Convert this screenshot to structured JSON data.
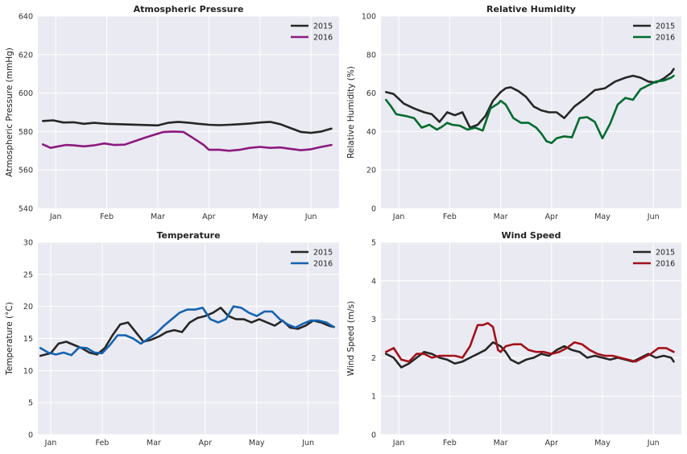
{
  "chart_data": [
    {
      "type": "line",
      "title": "Atmospheric Pressure",
      "xlabel": "",
      "ylabel": "Atmospheric Pressure (mmHg)",
      "ylim": [
        540,
        640
      ],
      "yticks": [
        540,
        560,
        580,
        600,
        620,
        640
      ],
      "xlim": [
        -0.35,
        5.55
      ],
      "xticks": [
        "Jan",
        "Feb",
        "Mar",
        "Apr",
        "May",
        "Jun"
      ],
      "grid": true,
      "legend": "top-right",
      "series": [
        {
          "name": "2015",
          "color": "#262626",
          "x": [
            -0.25,
            -0.05,
            0.15,
            0.35,
            0.55,
            0.75,
            1.0,
            1.25,
            1.5,
            1.75,
            2.0,
            2.2,
            2.4,
            2.6,
            2.8,
            3.0,
            3.2,
            3.4,
            3.6,
            3.8,
            4.0,
            4.2,
            4.4,
            4.6,
            4.8,
            5.0,
            5.2,
            5.4
          ],
          "y": [
            585.5,
            585.8,
            584.7,
            584.8,
            584.0,
            584.5,
            584.0,
            583.8,
            583.6,
            583.4,
            583.2,
            584.5,
            585.0,
            584.6,
            584.0,
            583.5,
            583.3,
            583.5,
            583.8,
            584.2,
            584.7,
            585.0,
            583.8,
            581.8,
            579.8,
            579.3,
            580.0,
            581.5
          ]
        },
        {
          "name": "2016",
          "color": "#8b1a7e",
          "x": [
            -0.25,
            -0.1,
            0.05,
            0.2,
            0.35,
            0.55,
            0.75,
            0.95,
            1.15,
            1.35,
            1.55,
            1.75,
            1.95,
            2.1,
            2.3,
            2.5,
            2.7,
            2.9,
            3.0,
            3.2,
            3.4,
            3.6,
            3.8,
            4.0,
            4.2,
            4.4,
            4.6,
            4.8,
            5.0,
            5.2,
            5.4
          ],
          "y": [
            573.3,
            571.5,
            572.3,
            573.0,
            572.8,
            572.3,
            572.8,
            573.8,
            573.0,
            573.2,
            575.0,
            576.8,
            578.5,
            579.7,
            580.0,
            579.8,
            576.5,
            573.0,
            570.5,
            570.5,
            570.0,
            570.5,
            571.5,
            572.0,
            571.5,
            571.7,
            571.0,
            570.3,
            570.8,
            572.0,
            573.0
          ]
        }
      ]
    },
    {
      "type": "line",
      "title": "Relative Humidity",
      "xlabel": "",
      "ylabel": "Relative Humidity (%)",
      "ylim": [
        0,
        100
      ],
      "yticks": [
        0,
        20,
        40,
        60,
        80,
        100
      ],
      "xlim": [
        -0.35,
        5.55
      ],
      "xticks": [
        "Jan",
        "Feb",
        "Mar",
        "Apr",
        "May",
        "Jun"
      ],
      "grid": true,
      "legend": "top-right",
      "series": [
        {
          "name": "2015",
          "color": "#262626",
          "x": [
            -0.25,
            -0.1,
            0.1,
            0.3,
            0.5,
            0.65,
            0.8,
            0.95,
            1.1,
            1.25,
            1.4,
            1.55,
            1.7,
            1.85,
            2.0,
            2.1,
            2.2,
            2.35,
            2.5,
            2.65,
            2.8,
            2.95,
            3.1,
            3.25,
            3.45,
            3.65,
            3.85,
            4.05,
            4.25,
            4.45,
            4.6,
            4.75,
            4.9,
            5.05,
            5.2,
            5.35,
            5.4
          ],
          "y": [
            60.5,
            59.5,
            54.5,
            52.0,
            50.0,
            49.0,
            45.0,
            50.0,
            48.5,
            50.0,
            42.0,
            43.5,
            48.0,
            56.0,
            60.5,
            62.5,
            63.0,
            61.0,
            58.0,
            53.0,
            51.0,
            50.0,
            50.0,
            47.0,
            53.0,
            57.0,
            61.5,
            62.5,
            66.0,
            68.0,
            69.0,
            68.0,
            66.0,
            65.5,
            67.5,
            70.5,
            72.5
          ]
        },
        {
          "name": "2016",
          "color": "#006b2e",
          "x": [
            -0.25,
            -0.15,
            -0.05,
            0.15,
            0.3,
            0.45,
            0.6,
            0.75,
            0.85,
            0.95,
            1.05,
            1.2,
            1.35,
            1.5,
            1.65,
            1.8,
            1.95,
            2.0,
            2.1,
            2.25,
            2.4,
            2.55,
            2.7,
            2.8,
            2.9,
            3.0,
            3.1,
            3.25,
            3.4,
            3.55,
            3.7,
            3.85,
            4.0,
            4.15,
            4.3,
            4.45,
            4.6,
            4.75,
            4.9,
            5.05,
            5.2,
            5.35,
            5.4
          ],
          "y": [
            56.5,
            53.0,
            49.0,
            48.0,
            47.0,
            42.0,
            43.5,
            41.0,
            42.5,
            44.5,
            43.5,
            43.0,
            41.0,
            42.0,
            40.5,
            52.0,
            54.5,
            56.0,
            54.0,
            47.0,
            44.5,
            44.5,
            42.0,
            39.0,
            35.0,
            34.0,
            36.5,
            37.5,
            37.0,
            47.0,
            47.5,
            45.0,
            36.5,
            44.0,
            54.0,
            57.5,
            56.5,
            62.0,
            64.0,
            66.0,
            66.5,
            68.0,
            69.0
          ]
        }
      ]
    },
    {
      "type": "line",
      "title": "Temperature",
      "xlabel": "",
      "ylabel": "Temperature (°C)",
      "ylim": [
        0,
        30
      ],
      "yticks": [
        0,
        5,
        10,
        15,
        20,
        25,
        30
      ],
      "xlim": [
        -0.25,
        5.6
      ],
      "xticks": [
        "Jan",
        "Feb",
        "Mar",
        "Apr",
        "May",
        "Jun"
      ],
      "grid": true,
      "legend": "top-right",
      "series": [
        {
          "name": "2015",
          "color": "#262626",
          "x": [
            -0.2,
            0.0,
            0.15,
            0.3,
            0.45,
            0.6,
            0.75,
            0.9,
            1.05,
            1.2,
            1.35,
            1.5,
            1.65,
            1.8,
            1.95,
            2.1,
            2.25,
            2.4,
            2.55,
            2.7,
            2.85,
            3.0,
            3.15,
            3.3,
            3.45,
            3.6,
            3.75,
            3.9,
            4.05,
            4.2,
            4.35,
            4.5,
            4.65,
            4.8,
            4.95,
            5.1,
            5.25,
            5.4,
            5.5
          ],
          "y": [
            12.3,
            12.7,
            14.2,
            14.5,
            14.0,
            13.5,
            12.8,
            12.5,
            13.5,
            15.5,
            17.2,
            17.5,
            16.0,
            14.5,
            14.8,
            15.3,
            16.0,
            16.3,
            16.0,
            17.5,
            18.2,
            18.5,
            19.0,
            19.8,
            18.5,
            18.0,
            18.0,
            17.5,
            18.0,
            17.5,
            17.0,
            17.8,
            16.7,
            16.5,
            17.0,
            17.8,
            17.5,
            17.0,
            16.8
          ]
        },
        {
          "name": "2016",
          "color": "#1463b0",
          "x": [
            -0.2,
            -0.05,
            0.1,
            0.25,
            0.4,
            0.55,
            0.7,
            0.85,
            1.0,
            1.15,
            1.3,
            1.45,
            1.6,
            1.75,
            1.9,
            2.05,
            2.2,
            2.35,
            2.5,
            2.65,
            2.8,
            2.95,
            3.1,
            3.25,
            3.4,
            3.55,
            3.7,
            3.85,
            4.0,
            4.15,
            4.3,
            4.45,
            4.6,
            4.75,
            4.9,
            5.05,
            5.2,
            5.35,
            5.5
          ],
          "y": [
            13.5,
            12.8,
            12.5,
            12.8,
            12.4,
            13.6,
            13.5,
            12.8,
            12.7,
            14.0,
            15.5,
            15.5,
            15.0,
            14.2,
            15.0,
            15.8,
            17.0,
            18.0,
            19.0,
            19.5,
            19.5,
            19.8,
            18.0,
            17.5,
            18.0,
            20.0,
            19.8,
            19.0,
            18.5,
            19.2,
            19.2,
            18.0,
            17.2,
            16.7,
            17.3,
            17.8,
            17.8,
            17.5,
            16.8
          ]
        }
      ]
    },
    {
      "type": "line",
      "title": "Wind Speed",
      "xlabel": "",
      "ylabel": "Wind Speed (m/s)",
      "ylim": [
        0,
        5
      ],
      "yticks": [
        0,
        1,
        2,
        3,
        4,
        5
      ],
      "xlim": [
        -0.35,
        5.55
      ],
      "xticks": [
        "Jan",
        "Feb",
        "Mar",
        "Apr",
        "May",
        "Jun"
      ],
      "grid": true,
      "legend": "top-right",
      "series": [
        {
          "name": "2015",
          "color": "#262626",
          "x": [
            -0.25,
            -0.1,
            0.05,
            0.2,
            0.35,
            0.5,
            0.65,
            0.8,
            0.95,
            1.1,
            1.25,
            1.4,
            1.55,
            1.7,
            1.85,
            2.0,
            2.1,
            2.2,
            2.35,
            2.5,
            2.65,
            2.8,
            2.95,
            3.1,
            3.25,
            3.4,
            3.55,
            3.7,
            3.85,
            4.0,
            4.15,
            4.3,
            4.45,
            4.6,
            4.75,
            4.9,
            5.05,
            5.2,
            5.35,
            5.4
          ],
          "y": [
            2.1,
            2.0,
            1.75,
            1.85,
            2.0,
            2.15,
            2.1,
            2.0,
            1.95,
            1.85,
            1.9,
            2.0,
            2.1,
            2.2,
            2.4,
            2.3,
            2.15,
            1.95,
            1.85,
            1.95,
            2.0,
            2.1,
            2.05,
            2.2,
            2.3,
            2.2,
            2.15,
            2.0,
            2.05,
            2.0,
            1.95,
            2.0,
            1.95,
            1.9,
            2.0,
            2.1,
            2.0,
            2.05,
            2.0,
            1.9
          ]
        },
        {
          "name": "2016",
          "color": "#a3111a",
          "x": [
            -0.25,
            -0.1,
            0.05,
            0.2,
            0.35,
            0.5,
            0.65,
            0.8,
            0.95,
            1.1,
            1.25,
            1.4,
            1.55,
            1.65,
            1.75,
            1.85,
            1.95,
            2.0,
            2.1,
            2.25,
            2.4,
            2.55,
            2.7,
            2.85,
            3.0,
            3.15,
            3.3,
            3.45,
            3.6,
            3.75,
            3.9,
            4.05,
            4.2,
            4.35,
            4.5,
            4.65,
            4.8,
            4.95,
            5.1,
            5.25,
            5.4
          ],
          "y": [
            2.15,
            2.25,
            1.95,
            1.9,
            2.1,
            2.1,
            2.0,
            2.05,
            2.05,
            2.05,
            2.0,
            2.3,
            2.85,
            2.85,
            2.9,
            2.8,
            2.2,
            2.15,
            2.3,
            2.35,
            2.35,
            2.2,
            2.15,
            2.15,
            2.1,
            2.15,
            2.25,
            2.4,
            2.35,
            2.2,
            2.1,
            2.05,
            2.05,
            2.0,
            1.95,
            1.9,
            2.0,
            2.1,
            2.25,
            2.25,
            2.15
          ]
        }
      ]
    }
  ]
}
